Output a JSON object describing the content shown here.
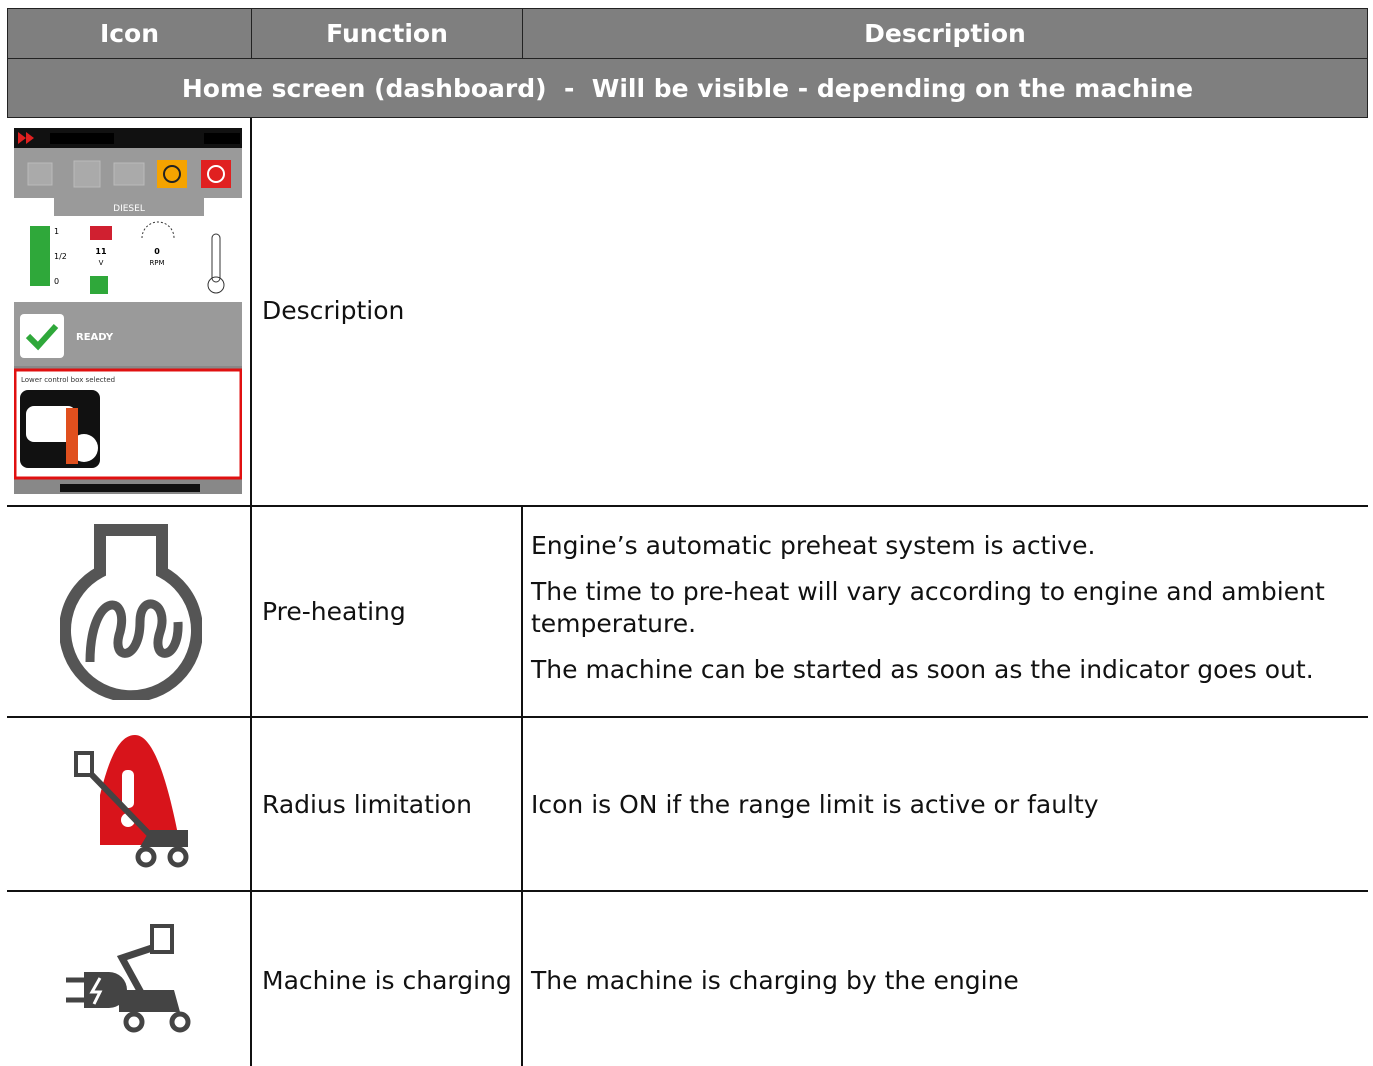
{
  "table": {
    "header": [
      "Icon",
      "Function",
      "Description"
    ],
    "section": "Home screen (dashboard)  -  Will be visible - depending on the machine",
    "rows": [
      {
        "function": "Description",
        "icon_texts": {
          "fuel": "DIESEL",
          "gauge": [
            "1",
            "1/2",
            "0"
          ],
          "battery": "11",
          "battery_unit": "V",
          "rpm": "0",
          "rpm_unit": "RPM",
          "status": "READY",
          "box": "Lower control box selected"
        }
      },
      {
        "function": "Pre-heating",
        "description": [
          "Engine’s automatic preheat system is active.",
          "The time to pre-heat will vary according to engine and ambient temperature.",
          "The machine can be started as soon as the indicator goes out."
        ]
      },
      {
        "function": "Radius limitation",
        "description": [
          "Icon is ON if the range limit is active or faulty"
        ]
      },
      {
        "function": "Machine is charging",
        "description": [
          "The machine is charging by the engine"
        ]
      }
    ]
  }
}
